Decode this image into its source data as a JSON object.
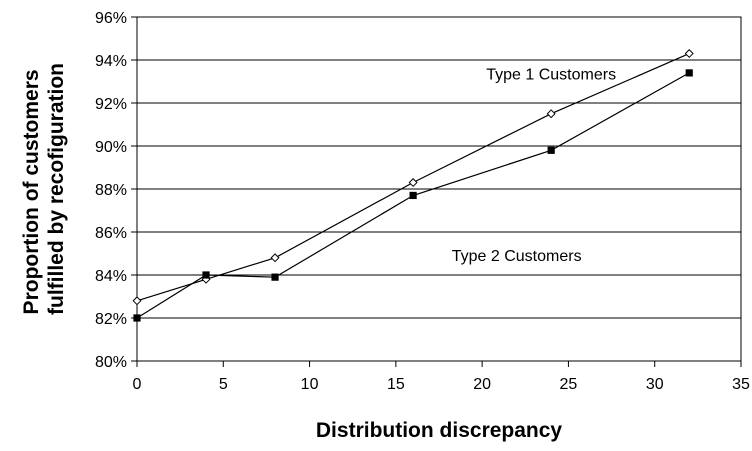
{
  "chart_data": {
    "type": "line",
    "xlabel": "Distribution discrepancy",
    "ylabel": [
      "Proportion of customers",
      "fulfilled by recofiguration"
    ],
    "xlim": [
      0,
      35
    ],
    "ylim": [
      0.8,
      0.96
    ],
    "x_ticks": [
      "0",
      "5",
      "10",
      "15",
      "20",
      "25",
      "30",
      "35"
    ],
    "y_ticks": [
      "80%",
      "82%",
      "84%",
      "86%",
      "88%",
      "90%",
      "92%",
      "94%",
      "96%"
    ],
    "grid": "horizontal",
    "series": [
      {
        "marker": "open-diamond",
        "x": [
          0,
          4,
          8,
          16,
          24,
          32
        ],
        "y": [
          0.828,
          0.838,
          0.848,
          0.883,
          0.915,
          0.943
        ]
      },
      {
        "marker": "filled-square",
        "x": [
          0,
          4,
          8,
          16,
          24,
          32
        ],
        "y": [
          0.82,
          0.84,
          0.839,
          0.877,
          0.898,
          0.934
        ]
      }
    ],
    "annotations": [
      {
        "text": "Type 1 Customers",
        "x": 24,
        "y": 0.931
      },
      {
        "text": "Type 2 Customers",
        "x": 22,
        "y": 0.8465
      }
    ]
  }
}
